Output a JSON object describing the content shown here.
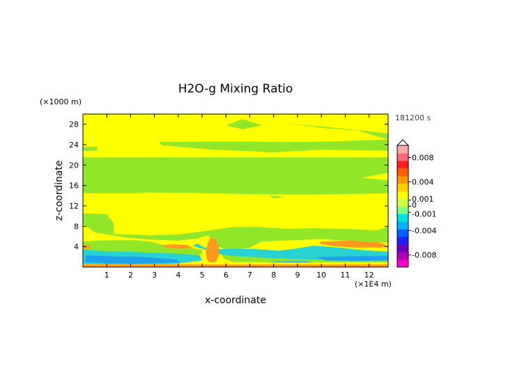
{
  "chart_data": {
    "type": "heatmap",
    "title": "H2O-g Mixing Ratio",
    "xlabel": "x-coordinate",
    "ylabel": "z-coordinate",
    "x_unit": "(×1E4 m)",
    "y_unit": "(×1000 m)",
    "time_label": "181200 s",
    "xlim": [
      0,
      12.8
    ],
    "ylim": [
      0,
      30
    ],
    "x_ticks": [
      1,
      2,
      3,
      4,
      5,
      6,
      7,
      8,
      9,
      10,
      11,
      12
    ],
    "y_ticks": [
      4,
      8,
      12,
      16,
      20,
      24,
      28
    ],
    "colorbar": {
      "tick_labels": [
        "0.008",
        "0.004",
        "0.001",
        "0",
        "-0.001",
        "-0.004",
        "-0.008"
      ],
      "tick_values": [
        0.008,
        0.004,
        0.001,
        0,
        -0.001,
        -0.004,
        -0.008
      ],
      "range": [
        -0.01,
        0.01
      ],
      "colors": [
        "#ff00c8",
        "#b000b8",
        "#6a00c0",
        "#2020ff",
        "#0060ff",
        "#00b0ff",
        "#00e0e0",
        "#80ff80",
        "#d0ff40",
        "#ffff00",
        "#ffd000",
        "#ff9800",
        "#ff6000",
        "#ff2020",
        "#ff6a7a",
        "#ffaaaa"
      ]
    },
    "background_color": "#ffff00",
    "regions": [
      {
        "level": "0 to -0.001",
        "color": "#92e62a",
        "points": [
          [
            6.7,
            29
          ],
          [
            7.5,
            27.8
          ],
          [
            6.7,
            27
          ],
          [
            6,
            27.8
          ]
        ]
      },
      {
        "level": "0 to -0.001",
        "color": "#92e62a",
        "points": [
          [
            8.5,
            28.2
          ],
          [
            10.8,
            27.2
          ],
          [
            12.8,
            26.2
          ],
          [
            12.8,
            25
          ],
          [
            10.2,
            24.6
          ],
          [
            8.4,
            24.5
          ],
          [
            7.2,
            24.6
          ],
          [
            5.3,
            24.6
          ],
          [
            3.2,
            24.5
          ],
          [
            3.3,
            23.9
          ],
          [
            4.5,
            23.4
          ],
          [
            5.5,
            23
          ],
          [
            8,
            22.5
          ],
          [
            10,
            23
          ],
          [
            12.8,
            22.8
          ],
          [
            12.8,
            25
          ],
          [
            11.5,
            26.8
          ],
          [
            10.2,
            27.2
          ]
        ]
      },
      {
        "level": "0 to -0.001",
        "color": "#92e62a",
        "points": [
          [
            0,
            23.6
          ],
          [
            0.6,
            23.6
          ],
          [
            0.6,
            22.8
          ],
          [
            0,
            22.8
          ]
        ]
      },
      {
        "level": "0 to -0.001",
        "color": "#92e62a",
        "points": [
          [
            0,
            21.5
          ],
          [
            12.8,
            21.5
          ],
          [
            12.8,
            18.5
          ],
          [
            11.7,
            17.5
          ],
          [
            12.8,
            17
          ],
          [
            12.8,
            14.5
          ],
          [
            11,
            14.3
          ],
          [
            9,
            14.2
          ],
          [
            7,
            14.3
          ],
          [
            5,
            14.5
          ],
          [
            3,
            14.6
          ],
          [
            1,
            14.8
          ],
          [
            0,
            14.7
          ],
          [
            0,
            17.5
          ],
          [
            1.4,
            18
          ],
          [
            2.5,
            17.8
          ],
          [
            3.5,
            16.2
          ],
          [
            2.5,
            14.5
          ],
          [
            0,
            14.5
          ]
        ]
      },
      {
        "level": "0 to -0.001",
        "color": "#92e62a",
        "points": [
          [
            0,
            10.5
          ],
          [
            1,
            10.4
          ],
          [
            1.3,
            8.5
          ],
          [
            1.3,
            6.5
          ],
          [
            2.8,
            6.2
          ],
          [
            4,
            6.4
          ],
          [
            5,
            7
          ],
          [
            6.2,
            7.8
          ],
          [
            7.3,
            7.9
          ],
          [
            8.5,
            7.5
          ],
          [
            9.5,
            7.6
          ],
          [
            11,
            7.5
          ],
          [
            12.3,
            7.2
          ],
          [
            12.8,
            7.9
          ],
          [
            12.8,
            4.8
          ],
          [
            11,
            5.2
          ],
          [
            10,
            5.5
          ],
          [
            8.5,
            5.2
          ],
          [
            7.5,
            5
          ],
          [
            7,
            3.8
          ],
          [
            6.1,
            3.3
          ],
          [
            5.7,
            4
          ],
          [
            5.3,
            6
          ],
          [
            5.2,
            6.2
          ],
          [
            4.8,
            5.6
          ],
          [
            4,
            5.2
          ],
          [
            2.8,
            5.4
          ],
          [
            1.8,
            5.8
          ],
          [
            0.5,
            6.8
          ],
          [
            0,
            8.5
          ]
        ]
      },
      {
        "level": "0 to -0.001",
        "color": "#92e62a",
        "points": [
          [
            0,
            5
          ],
          [
            0.8,
            5.2
          ],
          [
            2,
            5.3
          ],
          [
            2.8,
            5
          ],
          [
            3.5,
            4.2
          ],
          [
            4.5,
            3.8
          ],
          [
            5,
            3.3
          ],
          [
            5,
            2.6
          ],
          [
            4.6,
            2
          ],
          [
            3.2,
            1.9
          ],
          [
            1.6,
            2.2
          ],
          [
            0.5,
            2.5
          ],
          [
            0,
            3
          ]
        ]
      },
      {
        "level": "0 to -0.001",
        "color": "#92e62a",
        "points": [
          [
            5.8,
            2.5
          ],
          [
            7,
            2.4
          ],
          [
            8.5,
            2.6
          ],
          [
            10,
            2.8
          ],
          [
            11.5,
            2.9
          ],
          [
            12.8,
            2.8
          ],
          [
            12.8,
            0.9
          ],
          [
            11,
            0.9
          ],
          [
            9,
            0.9
          ],
          [
            7.5,
            1
          ],
          [
            6.3,
            1
          ],
          [
            5.9,
            1.7
          ]
        ]
      },
      {
        "level": "-0.001 to -0.002",
        "color": "#28d2d2",
        "points": [
          [
            4.8,
            4.6
          ],
          [
            5.1,
            3.8
          ],
          [
            5.8,
            3.5
          ],
          [
            6.5,
            3.6
          ],
          [
            7.3,
            3.5
          ],
          [
            8.2,
            3.2
          ],
          [
            8.9,
            3.6
          ],
          [
            9.7,
            4.2
          ],
          [
            10.5,
            3.9
          ],
          [
            11.8,
            3.3
          ],
          [
            12.8,
            3
          ],
          [
            12.8,
            1.3
          ],
          [
            11,
            1.5
          ],
          [
            9,
            1.5
          ],
          [
            7.3,
            1.9
          ],
          [
            6.2,
            2.2
          ],
          [
            5.8,
            2.5
          ],
          [
            5.2,
            3.3
          ],
          [
            4.6,
            4.2
          ]
        ]
      },
      {
        "level": "-0.001 to -0.002",
        "color": "#28d2d2",
        "points": [
          [
            0,
            3.4
          ],
          [
            1,
            3.1
          ],
          [
            2,
            3
          ],
          [
            3,
            2.8
          ],
          [
            4,
            2.6
          ],
          [
            4.9,
            2.3
          ],
          [
            5,
            1.3
          ],
          [
            3.8,
            0.6
          ],
          [
            2,
            0.5
          ],
          [
            0,
            0.6
          ]
        ]
      },
      {
        "level": "-0.002 to -0.004",
        "color": "#1ea0f0",
        "points": [
          [
            0.1,
            2.3
          ],
          [
            1.2,
            2.1
          ],
          [
            2.2,
            2
          ],
          [
            3,
            1.8
          ],
          [
            3.9,
            1.5
          ],
          [
            4.1,
            1
          ],
          [
            3.5,
            0.8
          ],
          [
            2,
            0.7
          ],
          [
            0.8,
            0.8
          ],
          [
            0.1,
            1
          ]
        ]
      },
      {
        "level": "-0.002 to -0.004",
        "color": "#1ea0f0",
        "points": [
          [
            9.8,
            1.9
          ],
          [
            11,
            2.1
          ],
          [
            12.5,
            2.2
          ],
          [
            12.8,
            2.1
          ],
          [
            12.8,
            1.3
          ],
          [
            11.5,
            1.2
          ],
          [
            10.2,
            1.3
          ]
        ]
      },
      {
        "level": "-0.002 to -0.004",
        "color": "#1ea0f0",
        "points": [
          [
            7.5,
            0.9
          ],
          [
            8.6,
            1.1
          ],
          [
            9.4,
            1.1
          ],
          [
            9.6,
            0.9
          ]
        ]
      },
      {
        "level": "0.001 to 0.002",
        "color": "#ff9a20",
        "points": [
          [
            10,
            5
          ],
          [
            11.2,
            5.2
          ],
          [
            12.4,
            4.9
          ],
          [
            12.8,
            4.2
          ],
          [
            12.5,
            3.8
          ],
          [
            11.5,
            3.8
          ],
          [
            10.5,
            4.1
          ],
          [
            9.9,
            4.6
          ]
        ]
      },
      {
        "level": "0.001 to 0.002",
        "color": "#ff9a20",
        "points": [
          [
            3.3,
            4.3
          ],
          [
            3.8,
            4.5
          ],
          [
            4.4,
            4.3
          ],
          [
            4.6,
            3.8
          ],
          [
            4.1,
            3.6
          ],
          [
            3.5,
            3.8
          ]
        ]
      },
      {
        "level": "0.001 to 0.002",
        "color": "#ff9a20",
        "points": [
          [
            5.2,
            1.5
          ],
          [
            5.15,
            3
          ],
          [
            5.25,
            4.8
          ],
          [
            5.35,
            5.8
          ],
          [
            5.55,
            5.6
          ],
          [
            5.7,
            4.2
          ],
          [
            5.72,
            2.4
          ],
          [
            5.6,
            1.2
          ],
          [
            5.5,
            0.9
          ],
          [
            5.3,
            1.0
          ]
        ]
      },
      {
        "level": "0.001 to 0.002",
        "color": "#ff9a20",
        "points": [
          [
            0,
            0
          ],
          [
            12.8,
            0
          ],
          [
            12.8,
            0.5
          ],
          [
            0,
            0.5
          ]
        ]
      },
      {
        "level": "0.001 to 0.002",
        "color": "#ff9a20",
        "points": [
          [
            0,
            3.7
          ],
          [
            0.3,
            3.7
          ],
          [
            0.3,
            4.3
          ],
          [
            0,
            4.3
          ]
        ]
      },
      {
        "level": "0 to -0.001",
        "color": "#92e62a",
        "points": [
          [
            7.8,
            14
          ],
          [
            8.5,
            13.8
          ],
          [
            8,
            13.5
          ]
        ]
      }
    ]
  }
}
